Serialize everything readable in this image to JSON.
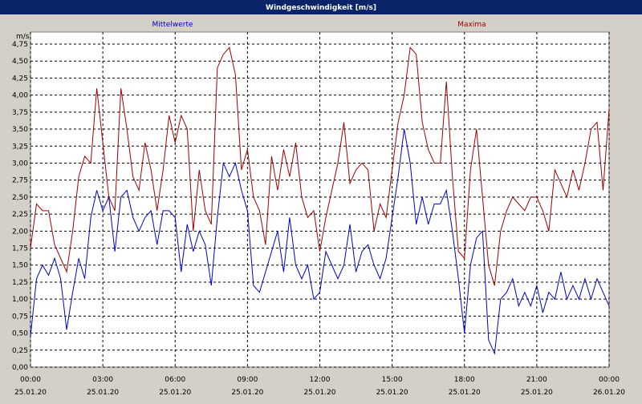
{
  "chart_data": {
    "type": "line",
    "title": "Windgeschwindigkeit [m/s]",
    "y_unit": "m/s",
    "x": [
      0,
      0.25,
      0.5,
      0.75,
      1,
      1.25,
      1.5,
      1.75,
      2,
      2.25,
      2.5,
      2.75,
      3,
      3.25,
      3.5,
      3.75,
      4,
      4.25,
      4.5,
      4.75,
      5,
      5.25,
      5.5,
      5.75,
      6,
      6.25,
      6.5,
      6.75,
      7,
      7.25,
      7.5,
      7.75,
      8,
      8.25,
      8.5,
      8.75,
      9,
      9.25,
      9.5,
      9.75,
      10,
      10.25,
      10.5,
      10.75,
      11,
      11.25,
      11.5,
      11.75,
      12,
      12.25,
      12.5,
      12.75,
      13,
      13.25,
      13.5,
      13.75,
      14,
      14.25,
      14.5,
      14.75,
      15,
      15.25,
      15.5,
      15.75,
      16,
      16.25,
      16.5,
      16.75,
      17,
      17.25,
      17.5,
      17.75,
      18,
      18.25,
      18.5,
      18.75,
      19,
      19.25,
      19.5,
      19.75,
      20,
      20.25,
      20.5,
      20.75,
      21,
      21.25,
      21.5,
      21.75,
      22,
      22.25,
      22.5,
      22.75,
      23,
      23.25,
      23.5,
      23.75,
      24
    ],
    "series": [
      {
        "name": "Mittelwerte",
        "color": "#0000cc",
        "values": [
          0.45,
          1.3,
          1.5,
          1.35,
          1.6,
          1.3,
          0.55,
          1.1,
          1.6,
          1.3,
          2.2,
          2.6,
          2.3,
          2.5,
          1.7,
          2.5,
          2.6,
          2.2,
          2.0,
          2.2,
          2.3,
          1.8,
          2.3,
          2.3,
          2.2,
          1.4,
          2.1,
          1.7,
          2.0,
          1.8,
          1.2,
          2.2,
          3.0,
          2.8,
          3.0,
          2.6,
          2.3,
          1.2,
          1.1,
          1.4,
          1.7,
          2.0,
          1.4,
          2.2,
          1.5,
          1.3,
          1.5,
          1.0,
          1.1,
          1.7,
          1.5,
          1.3,
          1.5,
          2.1,
          1.4,
          1.7,
          1.8,
          1.5,
          1.3,
          1.6,
          2.2,
          2.8,
          3.5,
          3.0,
          2.1,
          2.5,
          2.1,
          2.4,
          2.4,
          2.6,
          2.0,
          1.3,
          0.5,
          1.5,
          1.9,
          2.0,
          0.4,
          0.2,
          1.0,
          1.1,
          1.3,
          0.9,
          1.1,
          0.9,
          1.2,
          0.8,
          1.1,
          1.0,
          1.4,
          1.0,
          1.2,
          1.0,
          1.3,
          1.0,
          1.3,
          1.1,
          0.9
        ]
      },
      {
        "name": "Maxima",
        "color": "#a00000",
        "values": [
          1.75,
          2.4,
          2.3,
          2.3,
          1.8,
          1.6,
          1.4,
          2.0,
          2.8,
          3.1,
          3.0,
          4.1,
          3.3,
          2.5,
          2.3,
          4.1,
          3.5,
          2.8,
          2.6,
          3.3,
          2.9,
          2.3,
          2.9,
          3.7,
          3.3,
          3.7,
          3.5,
          2.0,
          2.9,
          2.3,
          2.1,
          4.4,
          4.6,
          4.7,
          4.3,
          2.9,
          3.2,
          2.5,
          2.3,
          1.8,
          3.1,
          2.6,
          3.2,
          2.8,
          3.3,
          2.5,
          2.2,
          2.3,
          1.7,
          2.2,
          2.6,
          3.0,
          3.6,
          2.7,
          2.9,
          3.0,
          2.9,
          2.0,
          2.4,
          2.2,
          2.9,
          3.6,
          4.0,
          4.7,
          4.6,
          3.6,
          3.2,
          3.0,
          3.0,
          4.2,
          2.8,
          1.7,
          1.6,
          2.9,
          3.5,
          2.5,
          1.5,
          1.2,
          2.0,
          2.3,
          2.5,
          2.4,
          2.3,
          2.5,
          2.5,
          2.3,
          2.0,
          2.9,
          2.7,
          2.5,
          2.9,
          2.6,
          3.0,
          3.5,
          3.6,
          2.6,
          3.8
        ]
      }
    ],
    "xlim": [
      0,
      24
    ],
    "xticks": [
      {
        "value": 0,
        "label": "00:00"
      },
      {
        "value": 3,
        "label": "03:00"
      },
      {
        "value": 6,
        "label": "06:00"
      },
      {
        "value": 9,
        "label": "09:00"
      },
      {
        "value": 12,
        "label": "12:00"
      },
      {
        "value": 15,
        "label": "15:00"
      },
      {
        "value": 18,
        "label": "18:00"
      },
      {
        "value": 21,
        "label": "21:00"
      },
      {
        "value": 24,
        "label": "00:00"
      }
    ],
    "xtick_dates": [
      "25.01.20",
      "25.01.20",
      "25.01.20",
      "25.01.20",
      "25.01.20",
      "25.01.20",
      "25.01.20",
      "25.01.20",
      "26.01.20"
    ],
    "ylim": [
      0,
      4.75
    ],
    "yticks": [
      {
        "value": 0,
        "label": "0,00"
      },
      {
        "value": 0.25,
        "label": "0,25"
      },
      {
        "value": 0.5,
        "label": "0,50"
      },
      {
        "value": 0.75,
        "label": "0,75"
      },
      {
        "value": 1,
        "label": "1,00"
      },
      {
        "value": 1.25,
        "label": "1,25"
      },
      {
        "value": 1.5,
        "label": "1,50"
      },
      {
        "value": 1.75,
        "label": "1,75"
      },
      {
        "value": 2,
        "label": "2,00"
      },
      {
        "value": 2.25,
        "label": "2,25"
      },
      {
        "value": 2.5,
        "label": "2,50"
      },
      {
        "value": 2.75,
        "label": "2,75"
      },
      {
        "value": 3,
        "label": "3,00"
      },
      {
        "value": 3.25,
        "label": "3,25"
      },
      {
        "value": 3.5,
        "label": "3,50"
      },
      {
        "value": 3.75,
        "label": "3,75"
      },
      {
        "value": 4,
        "label": "4,00"
      },
      {
        "value": 4.25,
        "label": "4,25"
      },
      {
        "value": 4.5,
        "label": "4,50"
      },
      {
        "value": 4.75,
        "label": "4,75"
      }
    ],
    "grid": true
  }
}
